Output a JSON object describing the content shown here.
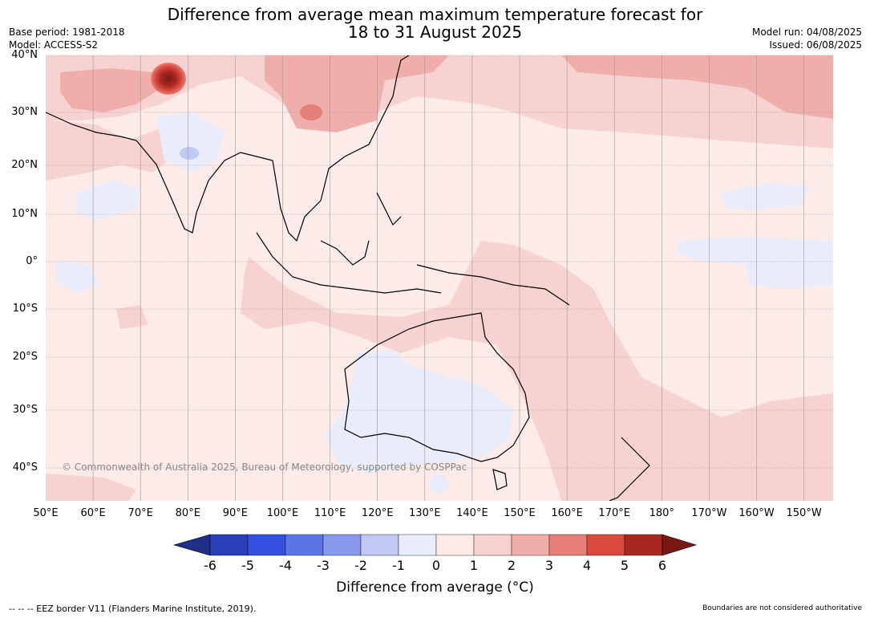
{
  "title": {
    "line1": "Difference from average mean maximum temperature forecast for",
    "line2": "18 to 31 August 2025"
  },
  "meta": {
    "base_period": "Base period: 1981-2018",
    "model": "Model: ACCESS-S2",
    "model_run": "Model run: 04/08/2025",
    "issued": "Issued: 06/08/2025"
  },
  "map": {
    "lat_labels": [
      "40°N",
      "30°N",
      "20°N",
      "10°N",
      "0°",
      "10°S",
      "20°S",
      "30°S",
      "40°S"
    ],
    "lon_labels": [
      "50°E",
      "60°E",
      "70°E",
      "80°E",
      "90°E",
      "100°E",
      "110°E",
      "120°E",
      "130°E",
      "140°E",
      "150°E",
      "160°E",
      "170°E",
      "180°",
      "170°W",
      "160°W",
      "150°W"
    ],
    "copyright": "© Commonwealth of Australia 2025, Bureau of Meteorology, supported by COSPPac"
  },
  "colorbar": {
    "title": "Difference from average (°C)",
    "labels": [
      "-6",
      "-5",
      "-4",
      "-3",
      "-2",
      "-1",
      "0",
      "1",
      "2",
      "3",
      "4",
      "5",
      "6"
    ],
    "colors": [
      "#1f2f8a",
      "#2a3fb8",
      "#3350e0",
      "#5a75e6",
      "#8898ec",
      "#c0c8f4",
      "#e9ecfb",
      "#fcebe8",
      "#f6d3d0",
      "#efaeaa",
      "#e67f78",
      "#d94a3f",
      "#a82821",
      "#7a1812"
    ]
  },
  "footer": {
    "eez": "--  --  -- EEZ border V11 (Flanders Marine Institute, 2019).",
    "disclaimer": "Boundaries are not considered authoritative"
  }
}
